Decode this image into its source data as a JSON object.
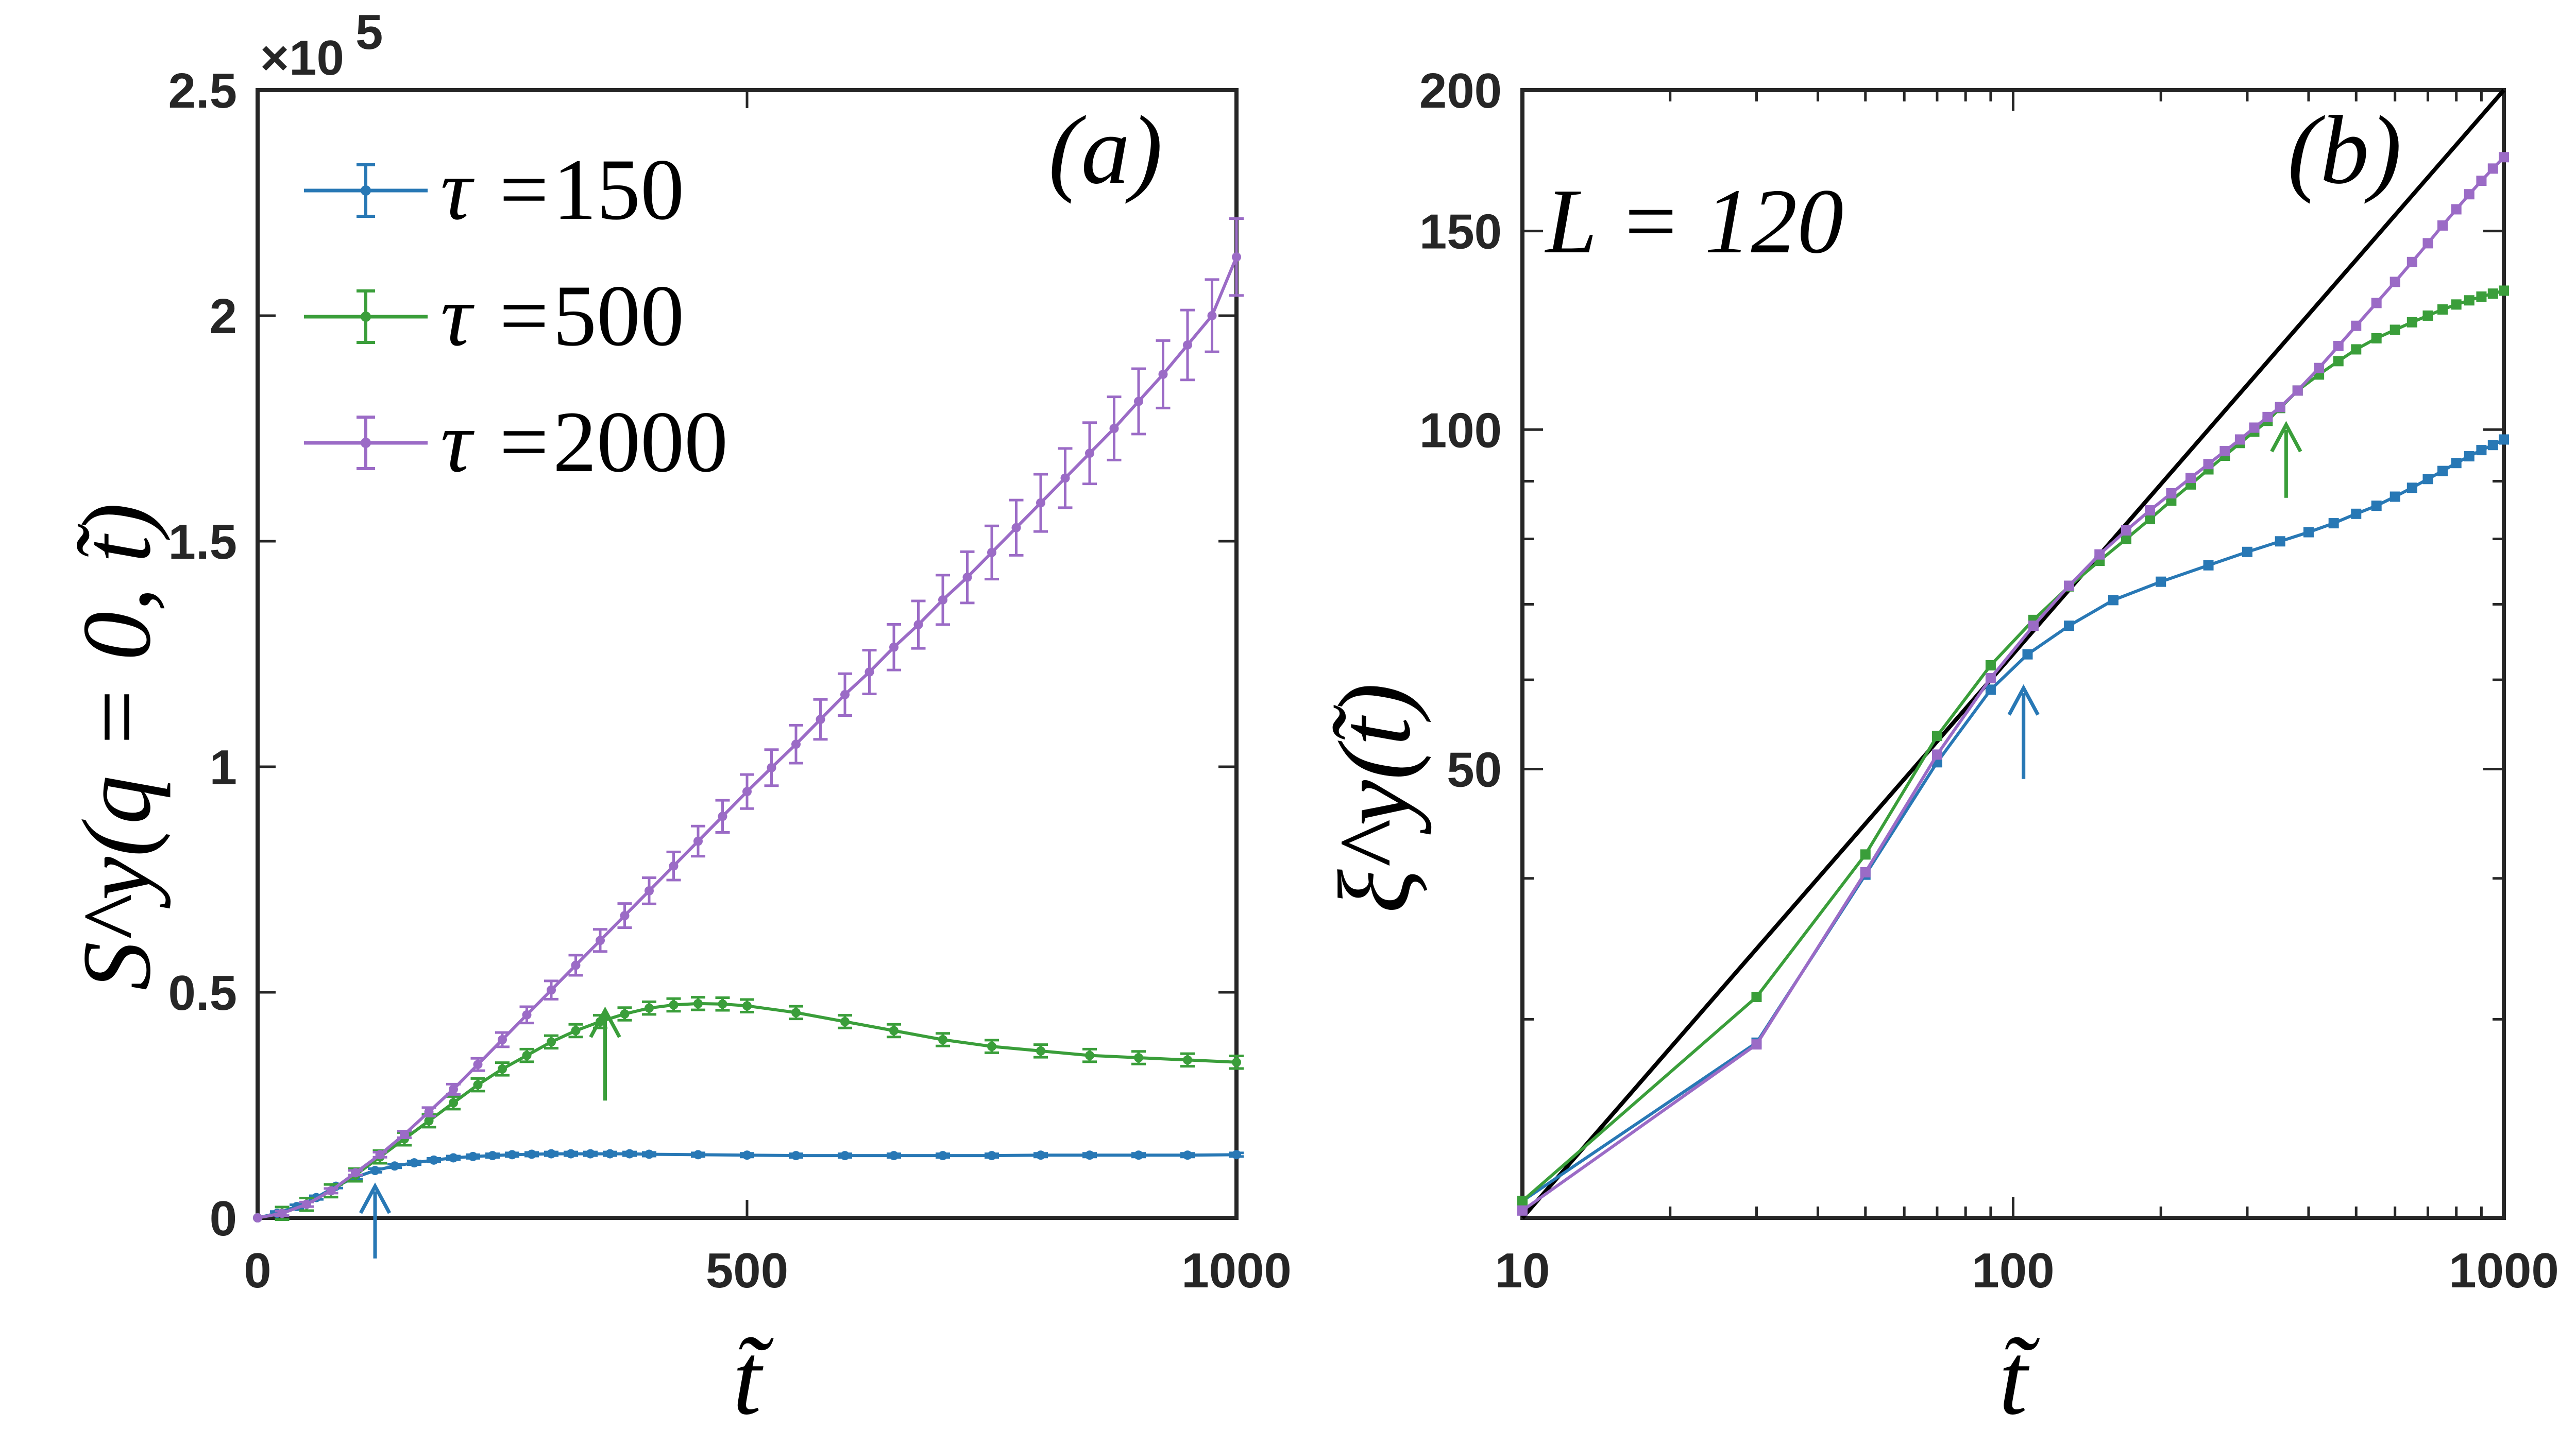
{
  "chart_data": [
    {
      "panel": "(a)",
      "type": "line",
      "xlabel": "t̃",
      "ylabel": "S^y(q = 0, t̃)",
      "y_multiplier_label": "×10",
      "y_multiplier_exponent": "5",
      "xlim": [
        0,
        1000
      ],
      "ylim": [
        0,
        2.5
      ],
      "xticks": [
        0,
        500,
        1000
      ],
      "xtick_labels": [
        "0",
        "500",
        "1000"
      ],
      "yticks": [
        0,
        0.5,
        1,
        1.5,
        2,
        2.5
      ],
      "ytick_labels": [
        "0",
        "0.5",
        "1",
        "1.5",
        "2",
        "2.5"
      ],
      "legend_position": "top-left",
      "series": [
        {
          "name": "150",
          "legend_prefix": "τ =",
          "color": "#2878B5",
          "error_bars": true,
          "x": [
            0,
            20,
            40,
            60,
            80,
            100,
            120,
            140,
            160,
            180,
            200,
            220,
            240,
            260,
            280,
            300,
            320,
            340,
            360,
            380,
            400,
            450,
            500,
            550,
            600,
            650,
            700,
            750,
            800,
            850,
            900,
            950,
            1000
          ],
          "y": [
            0,
            0.01,
            0.025,
            0.045,
            0.07,
            0.09,
            0.105,
            0.115,
            0.122,
            0.128,
            0.133,
            0.136,
            0.138,
            0.14,
            0.141,
            0.142,
            0.142,
            0.142,
            0.142,
            0.142,
            0.141,
            0.14,
            0.139,
            0.138,
            0.138,
            0.138,
            0.138,
            0.138,
            0.139,
            0.139,
            0.139,
            0.139,
            0.14
          ],
          "yerr": 0.004
        },
        {
          "name": "500",
          "legend_prefix": "τ =",
          "color": "#3A9E3A",
          "error_bars": true,
          "x": [
            0,
            25,
            50,
            75,
            100,
            125,
            150,
            175,
            200,
            225,
            250,
            275,
            300,
            325,
            350,
            375,
            400,
            425,
            450,
            475,
            500,
            550,
            600,
            650,
            700,
            750,
            800,
            850,
            900,
            950,
            1000
          ],
          "y": [
            0,
            0.01,
            0.03,
            0.06,
            0.095,
            0.135,
            0.175,
            0.215,
            0.255,
            0.295,
            0.33,
            0.36,
            0.39,
            0.415,
            0.435,
            0.452,
            0.465,
            0.472,
            0.475,
            0.474,
            0.47,
            0.455,
            0.435,
            0.415,
            0.395,
            0.38,
            0.37,
            0.36,
            0.355,
            0.35,
            0.345
          ],
          "yerr": 0.014
        },
        {
          "name": "2000",
          "legend_prefix": "τ =",
          "color": "#9B6BC6",
          "error_bars": true,
          "x": [
            0,
            25,
            50,
            75,
            100,
            125,
            150,
            175,
            200,
            225,
            250,
            275,
            300,
            325,
            350,
            375,
            400,
            425,
            450,
            475,
            500,
            525,
            550,
            575,
            600,
            625,
            650,
            675,
            700,
            725,
            750,
            775,
            800,
            825,
            850,
            875,
            900,
            925,
            950,
            975,
            1000
          ],
          "y": [
            0,
            0.01,
            0.03,
            0.06,
            0.1,
            0.14,
            0.185,
            0.235,
            0.285,
            0.34,
            0.395,
            0.45,
            0.505,
            0.56,
            0.615,
            0.67,
            0.725,
            0.78,
            0.835,
            0.89,
            0.945,
            0.998,
            1.05,
            1.105,
            1.16,
            1.21,
            1.265,
            1.315,
            1.37,
            1.42,
            1.475,
            1.53,
            1.585,
            1.64,
            1.695,
            1.75,
            1.81,
            1.87,
            1.935,
            2.0,
            2.13
          ],
          "yerr_frac": 0.04
        }
      ],
      "arrows": [
        {
          "series": "150",
          "x": 120,
          "y_tip": 0.07,
          "y_tail": -0.09
        },
        {
          "series": "500",
          "x": 355,
          "y_tip": 0.46,
          "y_tail": 0.26
        }
      ],
      "annotation": "(a)"
    },
    {
      "panel": "(b)",
      "type": "line",
      "xscale": "log",
      "yscale": "log",
      "xlabel": "t̃",
      "ylabel": "ξ^y(t̃)",
      "xlim": [
        10,
        1000
      ],
      "ylim": [
        20,
        200
      ],
      "xticks": [
        10,
        100,
        1000
      ],
      "xtick_labels": [
        "10",
        "100",
        "1000"
      ],
      "yticks": [
        50,
        100,
        150,
        200
      ],
      "ytick_labels": [
        "50",
        "100",
        "150",
        "200"
      ],
      "series": [
        {
          "name": "150",
          "color": "#2878B5",
          "x": [
            10,
            30,
            50,
            70,
            90,
            107,
            130,
            160,
            200,
            250,
            300,
            350,
            400,
            450,
            500,
            550,
            600,
            650,
            700,
            750,
            800,
            850,
            900,
            950,
            1000
          ],
          "y": [
            20.7,
            28.6,
            40.3,
            50.7,
            58.8,
            63.2,
            67.0,
            70.6,
            73.3,
            75.8,
            77.9,
            79.6,
            81.1,
            82.6,
            84.2,
            85.6,
            87.2,
            88.8,
            90.4,
            91.9,
            93.4,
            94.7,
            95.9,
            96.9,
            98.0
          ]
        },
        {
          "name": "500",
          "color": "#3A9E3A",
          "x": [
            10,
            30,
            50,
            70,
            90,
            110,
            130,
            150,
            170,
            190,
            210,
            230,
            250,
            270,
            290,
            310,
            330,
            350,
            380,
            420,
            460,
            500,
            550,
            600,
            650,
            700,
            750,
            800,
            850,
            900,
            950,
            1000
          ],
          "y": [
            20.7,
            31.4,
            42.0,
            53.5,
            61.8,
            67.8,
            72.6,
            76.5,
            80.0,
            83.3,
            86.5,
            89.4,
            92.2,
            94.8,
            97.3,
            99.6,
            101.8,
            104.5,
            108.3,
            111.9,
            115.0,
            117.8,
            120.5,
            122.6,
            124.5,
            126.2,
            127.8,
            129.1,
            130.2,
            131.2,
            132.0,
            132.8
          ]
        },
        {
          "name": "2000",
          "color": "#9B6BC6",
          "x": [
            10,
            30,
            50,
            70,
            90,
            110,
            130,
            150,
            170,
            190,
            210,
            230,
            250,
            270,
            290,
            310,
            330,
            350,
            380,
            420,
            460,
            500,
            550,
            600,
            650,
            700,
            750,
            800,
            850,
            900,
            950,
            1000
          ],
          "y": [
            20.3,
            28.5,
            40.5,
            51.5,
            60.2,
            67.0,
            72.7,
            77.5,
            81.4,
            84.8,
            87.8,
            90.6,
            93.2,
            95.7,
            98.0,
            100.4,
            102.6,
            104.7,
            108.3,
            113.4,
            118.6,
            123.6,
            129.5,
            135.2,
            140.8,
            146.3,
            151.7,
            156.8,
            161.7,
            166.2,
            170.4,
            174.4
          ]
        }
      ],
      "reference_line": {
        "color": "#000000",
        "x": [
          10,
          1000
        ],
        "y": [
          20,
          200
        ]
      },
      "arrows": [
        {
          "series": "150",
          "x": 105,
          "y_tip": 59,
          "y_tail": 49
        },
        {
          "series": "500",
          "x": 360,
          "y_tip": 101,
          "y_tail": 87
        }
      ],
      "annotation": "(b)",
      "text_label": "L = 120"
    }
  ]
}
